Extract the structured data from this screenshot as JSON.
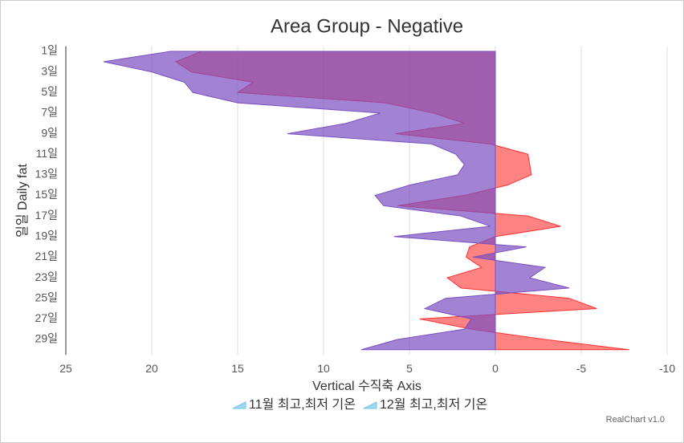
{
  "chart_data": {
    "type": "area",
    "orientation": "horizontal",
    "title": "Area Group - Negative",
    "x_label": "Vertical 수직축 Axis",
    "y_label": "일일 Daily fat",
    "credits": "RealChart v1.0",
    "categories": [
      "1일",
      null,
      "3일",
      null,
      "5일",
      null,
      "7일",
      null,
      "9일",
      null,
      "11일",
      null,
      "13일",
      null,
      "15일",
      null,
      "17일",
      null,
      "19일",
      null,
      "21일",
      null,
      "23일",
      null,
      "25일",
      null,
      "27일",
      null,
      "29일",
      null
    ],
    "xlim": [
      25,
      -10
    ],
    "xticks": [
      25,
      20,
      15,
      10,
      5,
      0,
      -5,
      -10
    ],
    "grid": true,
    "series": [
      {
        "name": "11월 최고,최저 기온",
        "color": "#7a4fc0",
        "values": [
          18.9,
          22.8,
          20.0,
          18.1,
          17.6,
          15.0,
          6.7,
          8.7,
          12.1,
          3.7,
          2.3,
          1.8,
          2.2,
          5.0,
          7.0,
          6.5,
          2.0,
          0.3,
          5.9,
          -1.8,
          1.3,
          -2.9,
          -2.0,
          -4.3,
          2.9,
          4.1,
          1.4,
          1.8,
          5.7,
          7.8
        ]
      },
      {
        "name": "12월 최고,최저 기온",
        "color": "#ff3030",
        "values": [
          17.1,
          18.6,
          17.7,
          14.1,
          15.0,
          6.4,
          3.6,
          1.8,
          5.8,
          0.3,
          -1.9,
          -2.0,
          -2.1,
          -0.7,
          1.8,
          5.7,
          -1.9,
          -3.8,
          0,
          1.5,
          1.7,
          0.8,
          2.8,
          2.0,
          -4.3,
          -5.9,
          4.4,
          1.4,
          -2.9,
          -7.8
        ]
      }
    ]
  }
}
